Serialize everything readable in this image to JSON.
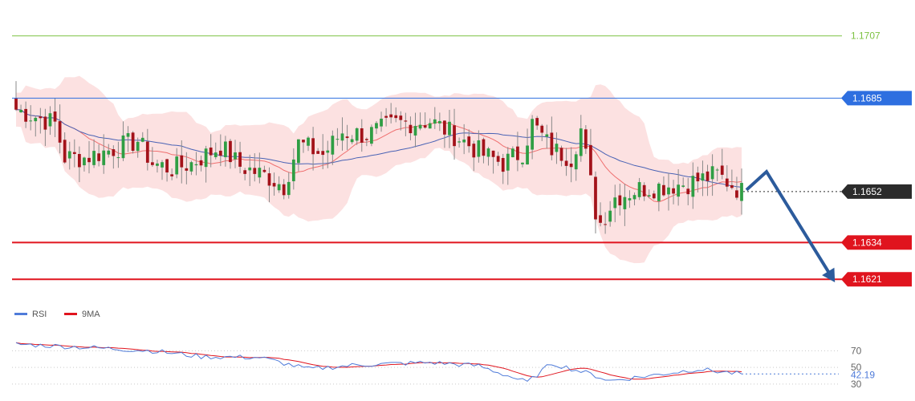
{
  "chart_data": [
    {
      "type": "candlestick",
      "ylim": [
        1.1612,
        1.1714
      ],
      "overlays": [
        "bollinger-band",
        "moving-average-fast",
        "moving-average-slow"
      ],
      "levels": [
        {
          "value": 1.1707,
          "label": "1.1707",
          "color": "#7dc242",
          "style": "thin line, text label"
        },
        {
          "value": 1.1685,
          "label": "1.1685",
          "color": "#2e6fe0",
          "style": "resistance line, label box"
        },
        {
          "value": 1.1652,
          "label": "1.1652",
          "color": "#2b2b2b",
          "style": "dotted current price, label box"
        },
        {
          "value": 1.1634,
          "label": "1.1634",
          "color": "#e0141e",
          "style": "support line, label box"
        },
        {
          "value": 1.1621,
          "label": "1.1621",
          "color": "#e0141e",
          "style": "support line, label box"
        }
      ],
      "forecast_arrow": {
        "color": "#2c5b9c",
        "path": [
          1.1652,
          1.1659,
          1.1621
        ],
        "direction": "down"
      }
    },
    {
      "type": "line",
      "legend": [
        {
          "name": "RSI",
          "color": "#4f7bd9"
        },
        {
          "name": "9MA",
          "color": "#e0141e"
        }
      ],
      "ylim": [
        27,
        82
      ],
      "yticks": [
        "70",
        "50",
        "30"
      ],
      "last_value": "42.19",
      "last_value_color": "#4f7bd9"
    }
  ]
}
